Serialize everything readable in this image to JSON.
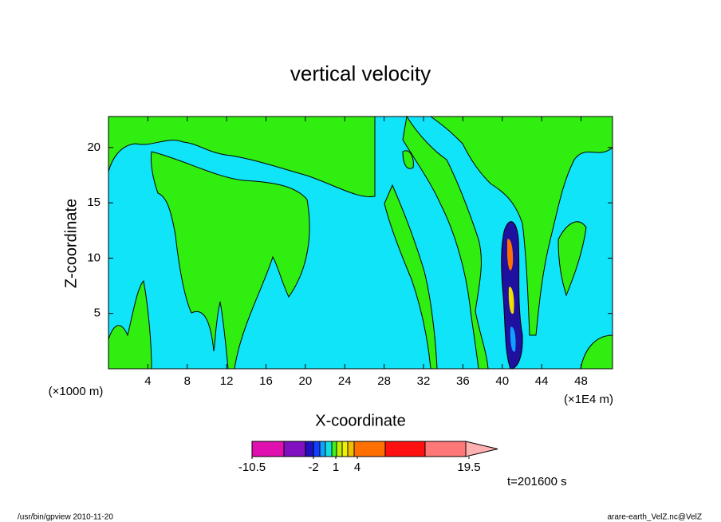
{
  "chart_data": {
    "type": "contour",
    "title": "vertical velocity",
    "x_label": "X-coordinate",
    "y_label": "Z-coordinate",
    "x_units": "(×1E4 m)",
    "y_units": "(×1000 m)",
    "xlim": [
      0,
      51.2
    ],
    "ylim": [
      0,
      22.8
    ],
    "xticks": [
      4,
      8,
      12,
      16,
      20,
      24,
      28,
      32,
      36,
      40,
      44,
      48
    ],
    "yticks": [
      5,
      10,
      15,
      20
    ],
    "colorbar": {
      "ticks": [
        -10.5,
        -2,
        1,
        4,
        19.5
      ],
      "colors": [
        "#e010b0",
        "#8010c0",
        "#2010c0",
        "#1040ff",
        "#10a0ff",
        "#10e0e0",
        "#40f020",
        "#c0f000",
        "#f0f000",
        "#f0c000",
        "#ff7000",
        "#ff1010",
        "#ff7878",
        "#ffb0b0"
      ]
    },
    "time_label": "t=201600 s",
    "footer_left": "/usr/bin/gpview  2010-11-20",
    "footer_right": "arare-earth_VelZ.nc@VelZ"
  }
}
